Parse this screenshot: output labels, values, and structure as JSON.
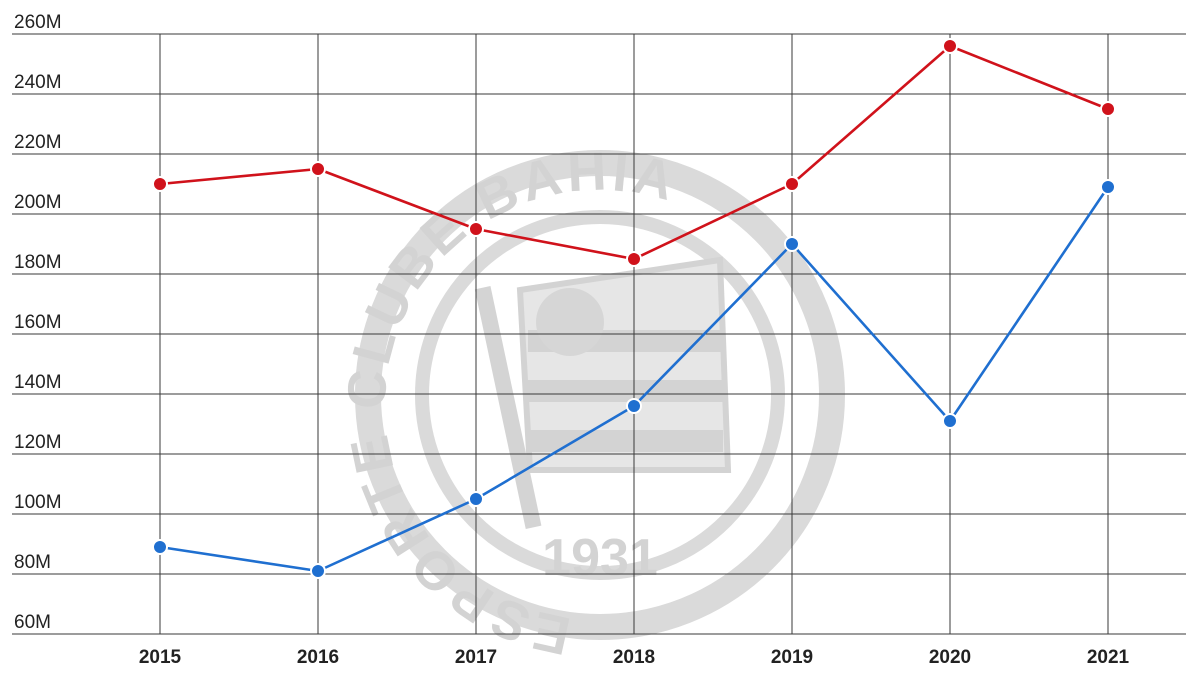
{
  "chart_data": {
    "type": "line",
    "x": [
      "2015",
      "2016",
      "2017",
      "2018",
      "2019",
      "2020",
      "2021"
    ],
    "series": [
      {
        "values": [
          210,
          215,
          195,
          185,
          210,
          256,
          235
        ],
        "color": "#d0121b"
      },
      {
        "values": [
          89,
          81,
          105,
          136,
          190,
          131,
          209
        ],
        "color": "#1f6fd0"
      }
    ],
    "ylim": [
      60,
      260
    ],
    "yticks": [
      {
        "value": 260,
        "label": "260M"
      },
      {
        "value": 240,
        "label": "240M"
      },
      {
        "value": 220,
        "label": "220M"
      },
      {
        "value": 200,
        "label": "200M"
      },
      {
        "value": 180,
        "label": "180M"
      },
      {
        "value": 160,
        "label": "160M"
      },
      {
        "value": 140,
        "label": "140M"
      },
      {
        "value": 120,
        "label": "120M"
      },
      {
        "value": 100,
        "label": "100M"
      },
      {
        "value": 80,
        "label": "80M"
      },
      {
        "value": 60,
        "label": "60M"
      }
    ],
    "grid": true,
    "legend": "none"
  },
  "watermark": {
    "ring_text": "ESPORTE CLUBE BAHIA",
    "year": "1931",
    "icon": "esporte-clube-bahia-crest"
  }
}
